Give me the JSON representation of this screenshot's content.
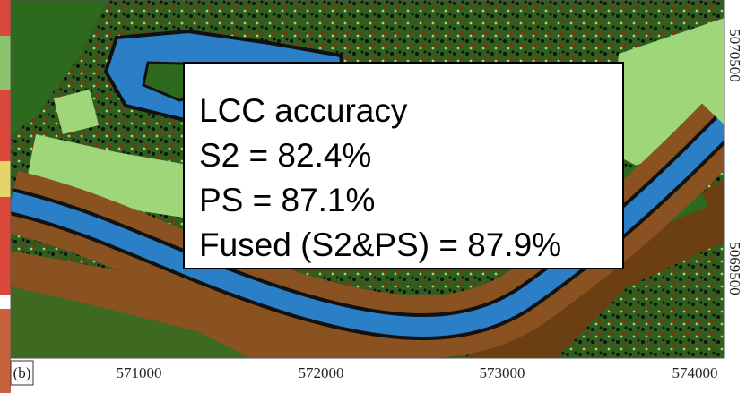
{
  "panel_label": "(b)",
  "x_ticks": [
    "571000",
    "572000",
    "573000",
    "574000"
  ],
  "y_ticks": [
    "5070500",
    "5069500"
  ],
  "annotation": {
    "lines": [
      "LCC accuracy",
      "S2 = 82.4%",
      "PS = 87.1%",
      "Fused (S2&PS) = 87.9%"
    ]
  }
}
